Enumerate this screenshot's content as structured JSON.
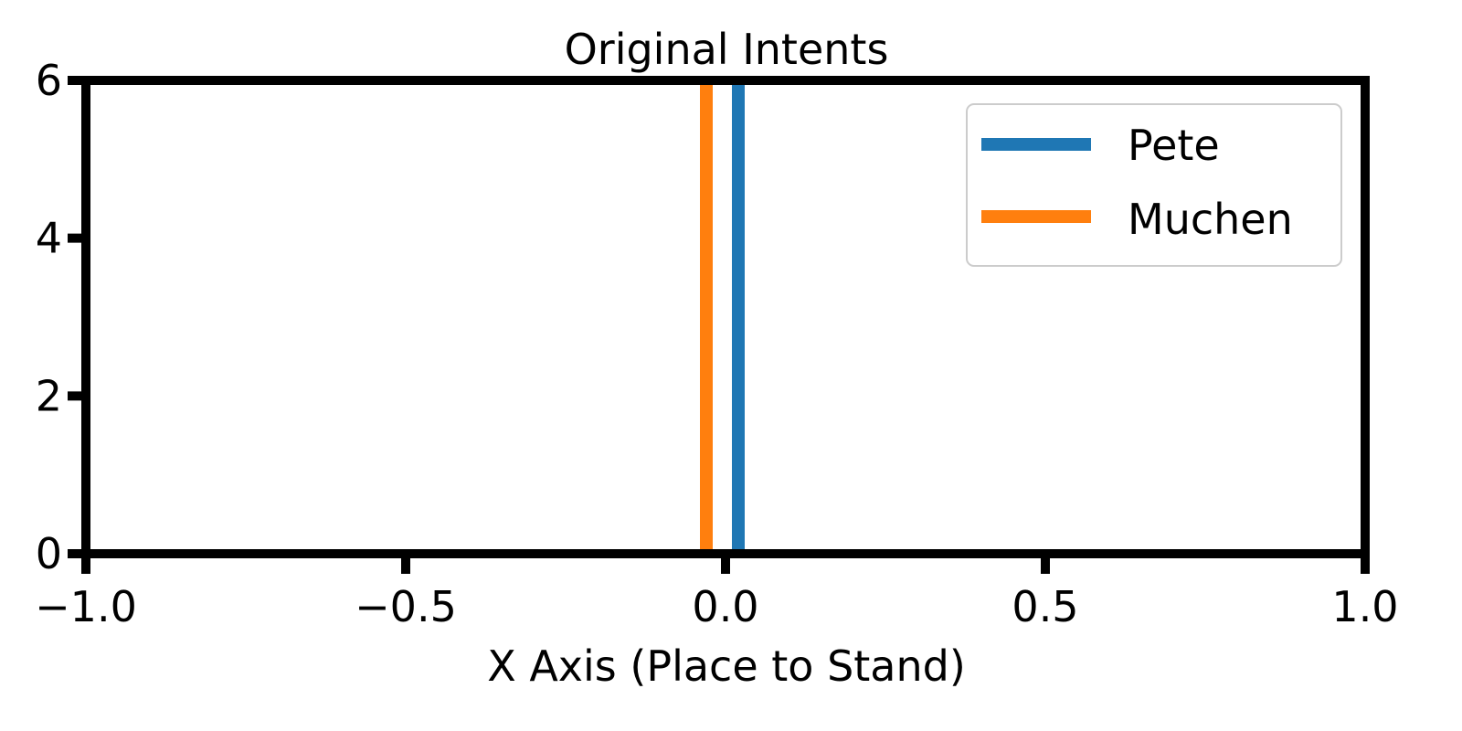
{
  "chart_data": {
    "type": "line",
    "title": "Original Intents",
    "xlabel": "X Axis (Place to Stand)",
    "ylabel": "",
    "xlim": [
      -1.0,
      1.0
    ],
    "ylim": [
      0,
      6
    ],
    "x_ticks": [
      -1.0,
      -0.5,
      0.0,
      0.5,
      1.0
    ],
    "x_tick_labels": [
      "−1.0",
      "−0.5",
      "0.0",
      "0.5",
      "1.0"
    ],
    "y_ticks": [
      0,
      2,
      4,
      6
    ],
    "y_tick_labels": [
      "0",
      "2",
      "4",
      "6"
    ],
    "grid": false,
    "legend_position": "top-right",
    "series": [
      {
        "name": "Pete",
        "color": "#1f77b4",
        "x": [
          0.02,
          0.02
        ],
        "y": [
          0,
          6
        ]
      },
      {
        "name": "Muchen",
        "color": "#ff7f0e",
        "x": [
          -0.03,
          -0.03
        ],
        "y": [
          0,
          6
        ]
      }
    ]
  }
}
